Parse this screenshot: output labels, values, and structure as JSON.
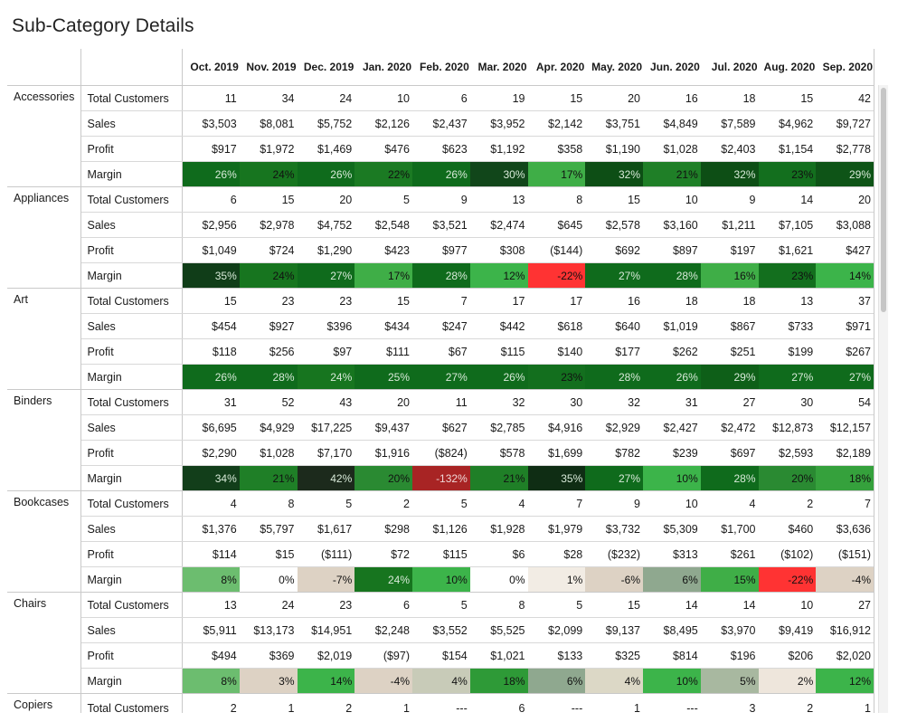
{
  "title": "Sub-Category Details",
  "months": [
    "Oct. 2019",
    "Nov. 2019",
    "Dec. 2019",
    "Jan. 2020",
    "Feb. 2020",
    "Mar. 2020",
    "Apr. 2020",
    "May. 2020",
    "Jun. 2020",
    "Jul. 2020",
    "Aug. 2020",
    "Sep. 2020"
  ],
  "measures": [
    "Total Customers",
    "Sales",
    "Profit",
    "Margin"
  ],
  "categories": [
    {
      "name": "Accessories",
      "customers": [
        "11",
        "34",
        "24",
        "10",
        "6",
        "19",
        "15",
        "20",
        "16",
        "18",
        "15",
        "42"
      ],
      "sales": [
        "$3,503",
        "$8,081",
        "$5,752",
        "$2,126",
        "$2,437",
        "$3,952",
        "$2,142",
        "$3,751",
        "$4,849",
        "$7,589",
        "$4,962",
        "$9,727"
      ],
      "profit": [
        "$917",
        "$1,972",
        "$1,469",
        "$476",
        "$623",
        "$1,192",
        "$358",
        "$1,190",
        "$1,028",
        "$2,403",
        "$1,154",
        "$2,778"
      ],
      "margin": [
        "26%",
        "24%",
        "26%",
        "22%",
        "26%",
        "30%",
        "17%",
        "32%",
        "21%",
        "32%",
        "23%",
        "29%"
      ],
      "margin_bg": [
        "#0f6b1c",
        "#17751f",
        "#0f6b1c",
        "#1b7a23",
        "#0f6b1c",
        "#11461a",
        "#3fae47",
        "#0d4e15",
        "#1f7f27",
        "#0d4e15",
        "#136f1e",
        "#0e5417"
      ],
      "margin_fg": [
        "#d8ead9",
        "#111111",
        "#d8ead9",
        "#111111",
        "#d8ead9",
        "#d8ead9",
        "#111111",
        "#d8ead9",
        "#111111",
        "#d8ead9",
        "#111111",
        "#d8ead9"
      ]
    },
    {
      "name": "Appliances",
      "customers": [
        "6",
        "15",
        "20",
        "5",
        "9",
        "13",
        "8",
        "15",
        "10",
        "9",
        "14",
        "20"
      ],
      "sales": [
        "$2,956",
        "$2,978",
        "$4,752",
        "$2,548",
        "$3,521",
        "$2,474",
        "$645",
        "$2,578",
        "$3,160",
        "$1,211",
        "$7,105",
        "$3,088"
      ],
      "profit": [
        "$1,049",
        "$724",
        "$1,290",
        "$423",
        "$977",
        "$308",
        "($144)",
        "$692",
        "$897",
        "$197",
        "$1,621",
        "$427"
      ],
      "margin": [
        "35%",
        "24%",
        "27%",
        "17%",
        "28%",
        "12%",
        "-22%",
        "27%",
        "28%",
        "16%",
        "23%",
        "14%"
      ],
      "margin_bg": [
        "#103d18",
        "#17751f",
        "#0f6b1c",
        "#3fae47",
        "#0f6b1c",
        "#3cb44a",
        "#ff3333",
        "#0f6b1c",
        "#0f6b1c",
        "#3fae47",
        "#136f1e",
        "#3cb44a"
      ],
      "margin_fg": [
        "#d8ead9",
        "#111111",
        "#d8ead9",
        "#111111",
        "#d8ead9",
        "#111111",
        "#111111",
        "#d8ead9",
        "#d8ead9",
        "#111111",
        "#111111",
        "#111111"
      ]
    },
    {
      "name": "Art",
      "customers": [
        "15",
        "23",
        "23",
        "15",
        "7",
        "17",
        "17",
        "16",
        "18",
        "18",
        "13",
        "37"
      ],
      "sales": [
        "$454",
        "$927",
        "$396",
        "$434",
        "$247",
        "$442",
        "$618",
        "$640",
        "$1,019",
        "$867",
        "$733",
        "$971"
      ],
      "profit": [
        "$118",
        "$256",
        "$97",
        "$111",
        "$67",
        "$115",
        "$140",
        "$177",
        "$262",
        "$251",
        "$199",
        "$267"
      ],
      "margin": [
        "26%",
        "28%",
        "24%",
        "25%",
        "27%",
        "26%",
        "23%",
        "28%",
        "26%",
        "29%",
        "27%",
        "27%"
      ],
      "margin_bg": [
        "#0f6b1c",
        "#0f6b1c",
        "#17751f",
        "#0f6b1c",
        "#0f6b1c",
        "#0f6b1c",
        "#136f1e",
        "#0f6b1c",
        "#0f6b1c",
        "#0e5f18",
        "#0f6b1c",
        "#0f6b1c"
      ],
      "margin_fg": [
        "#d8ead9",
        "#d8ead9",
        "#d8ead9",
        "#d8ead9",
        "#d8ead9",
        "#d8ead9",
        "#111111",
        "#d8ead9",
        "#d8ead9",
        "#d8ead9",
        "#d8ead9",
        "#d8ead9"
      ]
    },
    {
      "name": "Binders",
      "customers": [
        "31",
        "52",
        "43",
        "20",
        "11",
        "32",
        "30",
        "32",
        "31",
        "27",
        "30",
        "54"
      ],
      "sales": [
        "$6,695",
        "$4,929",
        "$17,225",
        "$9,437",
        "$627",
        "$2,785",
        "$4,916",
        "$2,929",
        "$2,427",
        "$2,472",
        "$12,873",
        "$12,157"
      ],
      "profit": [
        "$2,290",
        "$1,028",
        "$7,170",
        "$1,916",
        "($824)",
        "$578",
        "$1,699",
        "$782",
        "$239",
        "$697",
        "$2,593",
        "$2,189"
      ],
      "margin": [
        "34%",
        "21%",
        "42%",
        "20%",
        "-132%",
        "21%",
        "35%",
        "27%",
        "10%",
        "28%",
        "20%",
        "18%"
      ],
      "margin_bg": [
        "#123e1a",
        "#1f7f27",
        "#1c2a1c",
        "#2a8a32",
        "#a82424",
        "#1f7f27",
        "#0f2d14",
        "#0f6b1c",
        "#3cb44a",
        "#0f6b1c",
        "#2a8a32",
        "#35a13c"
      ],
      "margin_fg": [
        "#d8ead9",
        "#111111",
        "#d8ead9",
        "#111111",
        "#f0d8d8",
        "#111111",
        "#d8ead9",
        "#d8ead9",
        "#111111",
        "#d8ead9",
        "#111111",
        "#111111"
      ]
    },
    {
      "name": "Bookcases",
      "customers": [
        "4",
        "8",
        "5",
        "2",
        "5",
        "4",
        "7",
        "9",
        "10",
        "4",
        "2",
        "7"
      ],
      "sales": [
        "$1,376",
        "$5,797",
        "$1,617",
        "$298",
        "$1,126",
        "$1,928",
        "$1,979",
        "$3,732",
        "$5,309",
        "$1,700",
        "$460",
        "$3,636"
      ],
      "profit": [
        "$114",
        "$15",
        "($111)",
        "$72",
        "$115",
        "$6",
        "$28",
        "($232)",
        "$313",
        "$261",
        "($102)",
        "($151)"
      ],
      "margin": [
        "8%",
        "0%",
        "-7%",
        "24%",
        "10%",
        "0%",
        "1%",
        "-6%",
        "6%",
        "15%",
        "-22%",
        "-4%"
      ],
      "margin_bg": [
        "#6cbd6f",
        "#ffffff",
        "#ddd2c4",
        "#17751f",
        "#3cb44a",
        "#ffffff",
        "#f2ece4",
        "#ddd2c4",
        "#8fa88f",
        "#3fae47",
        "#ff3333",
        "#ddd2c4"
      ],
      "margin_fg": [
        "#111111",
        "#111111",
        "#111111",
        "#d8ead9",
        "#111111",
        "#111111",
        "#111111",
        "#111111",
        "#111111",
        "#111111",
        "#111111",
        "#111111"
      ]
    },
    {
      "name": "Chairs",
      "customers": [
        "13",
        "24",
        "23",
        "6",
        "5",
        "8",
        "5",
        "15",
        "14",
        "14",
        "10",
        "27"
      ],
      "sales": [
        "$5,911",
        "$13,173",
        "$14,951",
        "$2,248",
        "$3,552",
        "$5,525",
        "$2,099",
        "$9,137",
        "$8,495",
        "$3,970",
        "$9,419",
        "$16,912"
      ],
      "profit": [
        "$494",
        "$369",
        "$2,019",
        "($97)",
        "$154",
        "$1,021",
        "$133",
        "$325",
        "$814",
        "$196",
        "$206",
        "$2,020"
      ],
      "margin": [
        "8%",
        "3%",
        "14%",
        "-4%",
        "4%",
        "18%",
        "6%",
        "4%",
        "10%",
        "5%",
        "2%",
        "12%"
      ],
      "margin_bg": [
        "#6cbd6f",
        "#ddd2c4",
        "#3cb44a",
        "#ddd2c4",
        "#c8cbb8",
        "#2e9a37",
        "#8fa88f",
        "#dcd8c6",
        "#3cb44a",
        "#a8b8a0",
        "#eee6dc",
        "#3cb44a"
      ],
      "margin_fg": [
        "#111111",
        "#111111",
        "#111111",
        "#111111",
        "#111111",
        "#111111",
        "#111111",
        "#111111",
        "#111111",
        "#111111",
        "#111111",
        "#111111"
      ]
    },
    {
      "name": "Copiers",
      "customers": [
        "2",
        "1",
        "2",
        "1",
        "---",
        "6",
        "---",
        "1",
        "---",
        "3",
        "2",
        "1"
      ]
    }
  ]
}
